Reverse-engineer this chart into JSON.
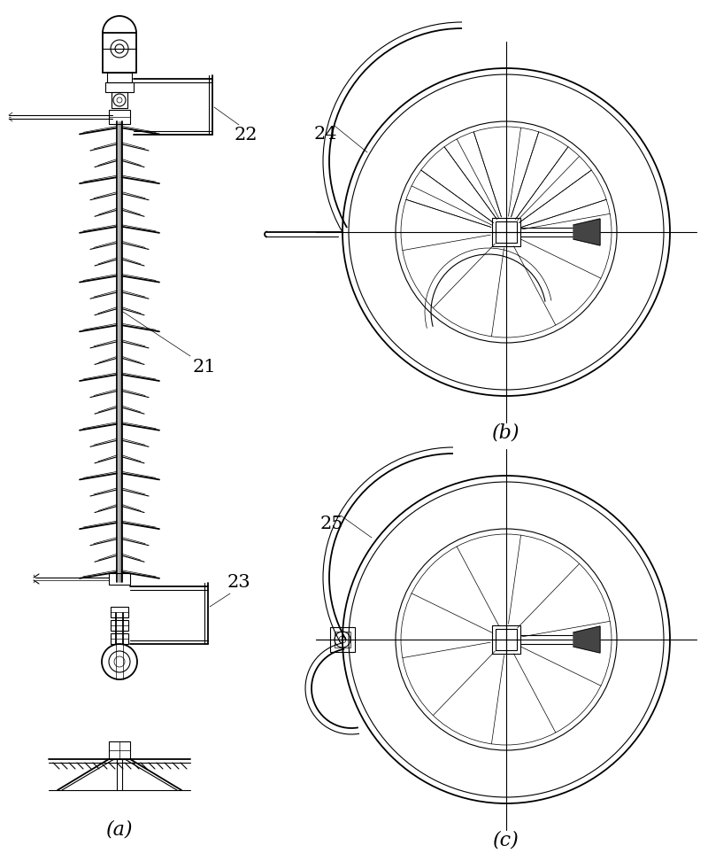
{
  "bg_color": "#ffffff",
  "line_color": "#000000",
  "label_a": "(a)",
  "label_b": "(b)",
  "label_c": "(c)",
  "label_21": "21",
  "label_22": "22",
  "label_23": "23",
  "label_24": "24",
  "label_25": "25",
  "fig_width": 8.0,
  "fig_height": 9.72
}
